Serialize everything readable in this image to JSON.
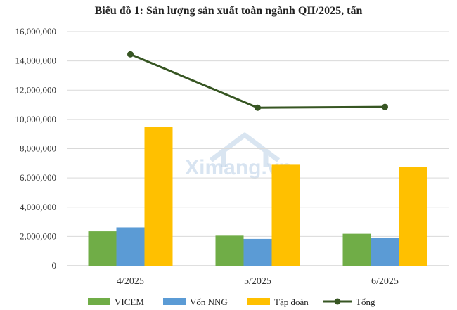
{
  "chart_data": {
    "type": "bar",
    "title": "Biểu đồ 1: Sản lượng sản xuất toàn ngành QII/2025, tấn",
    "categories": [
      "4/2025",
      "5/2025",
      "6/2025"
    ],
    "ylim": [
      0,
      16000000
    ],
    "yticks": [
      "0",
      "2,000,000",
      "4,000,000",
      "6,000,000",
      "8,000,000",
      "10,000,000",
      "12,000,000",
      "14,000,000",
      "16,000,000"
    ],
    "ytick_values": [
      0,
      2000000,
      4000000,
      6000000,
      8000000,
      10000000,
      12000000,
      14000000,
      16000000
    ],
    "grid": true,
    "legend_position": "bottom",
    "series": [
      {
        "name": "VICEM",
        "type": "bar",
        "color": "#70ad47",
        "values": [
          2350000,
          2050000,
          2180000
        ]
      },
      {
        "name": "Vốn NNG",
        "type": "bar",
        "color": "#5b9bd5",
        "values": [
          2620000,
          1830000,
          1900000
        ]
      },
      {
        "name": "Tập đoàn",
        "type": "bar",
        "color": "#ffc000",
        "values": [
          9500000,
          6900000,
          6750000
        ]
      },
      {
        "name": "Tổng",
        "type": "line",
        "color": "#375623",
        "values": [
          14450000,
          10800000,
          10850000
        ]
      }
    ]
  },
  "watermark": {
    "text": "Ximang.vn",
    "icon": "house-roof-icon"
  }
}
